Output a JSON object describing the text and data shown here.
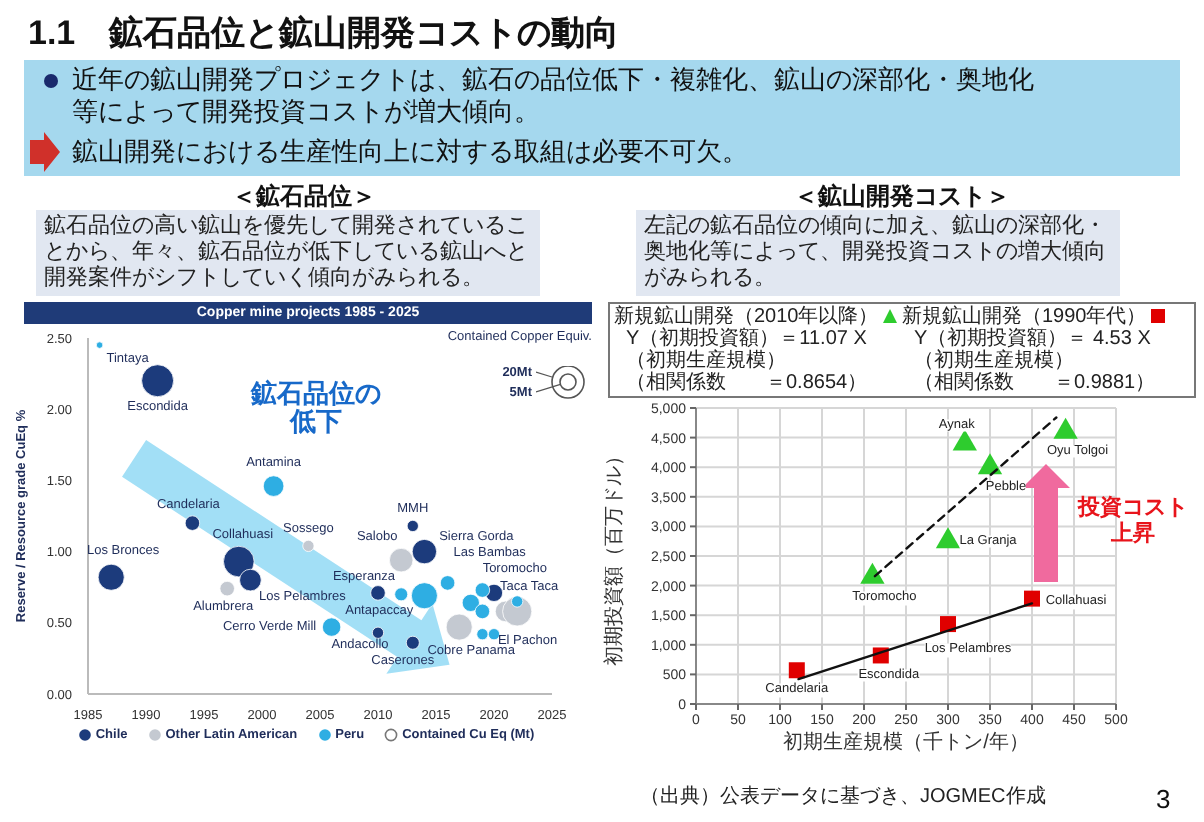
{
  "chart_data": [
    {
      "type": "other",
      "title": "1.1　鉱石品位と鉱山開発コストの動向",
      "annotations": [
        "近年の鉱山開発プロジェクトは、鉱石の品位低下・複雑化、鉱山の深部化・奥地化等によって開発投資コストが増大傾向。",
        "鉱山開発における生産性向上に対する取組は必要不可欠。",
        "3"
      ]
    },
    {
      "type": "bubble",
      "title": "＜鉱石品位＞",
      "subtitle": "鉱石品位の高い鉱山を優先して開発されていることから、年々、鉱石品位が低下している鉱山へと開発案件がシフトしていく傾向がみられる。",
      "ylabel": "Reserve / Resource grade CuEq %",
      "xlim": [
        1985,
        2025
      ],
      "xticks": [
        1985,
        1990,
        1995,
        2000,
        2005,
        2010,
        2015,
        2020,
        2025
      ],
      "ylim": [
        0,
        2.5
      ],
      "yticks": [
        {
          "value": 0,
          "label": "0.00"
        },
        {
          "value": 0.5,
          "label": "0.50"
        },
        {
          "value": 1,
          "label": "1.00"
        },
        {
          "value": 1.5,
          "label": "1.50"
        },
        {
          "value": 2,
          "label": "2.00"
        },
        {
          "value": 2.5,
          "label": "2.50"
        }
      ],
      "legend": "bottom",
      "marker": "circle",
      "size_legend": [
        {
          "value": 20,
          "label": "20Mt"
        },
        {
          "value": 5,
          "label": "5Mt"
        }
      ],
      "series": [
        {
          "name": "Chile",
          "color": "#1c3b7c",
          "x": [
            1987,
            1991,
            1994,
            1998,
            1999,
            2010,
            2010,
            2013,
            2013,
            2014,
            2020
          ],
          "values": [
            0.82,
            2.2,
            1.2,
            0.93,
            0.8,
            0.43,
            0.71,
            1.18,
            0.36,
            1.0,
            0.71
          ],
          "sizes": [
            16,
            24,
            5,
            22,
            11,
            3,
            5,
            3,
            4,
            14,
            7
          ]
        },
        {
          "name": "Other Latin American",
          "color": "#c4c9d1",
          "x": [
            1997,
            2004,
            2012,
            2017,
            2021,
            2022
          ],
          "values": [
            0.74,
            1.04,
            0.94,
            0.47,
            0.58,
            0.58
          ],
          "sizes": [
            5,
            3,
            13,
            16,
            10,
            20
          ]
        },
        {
          "name": "Peru",
          "color": "#2eaee3",
          "x": [
            1986,
            2001,
            2006,
            2012,
            2014,
            2016,
            2018,
            2019,
            2019,
            2019,
            2020,
            2022
          ],
          "values": [
            2.45,
            1.46,
            0.47,
            0.7,
            0.69,
            0.78,
            0.64,
            0.73,
            0.58,
            0.42,
            0.42,
            0.65
          ],
          "sizes": [
            1,
            10,
            8,
            4,
            16,
            5,
            7,
            5,
            5,
            3,
            3,
            3
          ]
        }
      ],
      "annotations": [
        "Copper mine projects 1985 - 2025",
        "鉱石品位の低下",
        "Contained Copper Equiv.",
        "Contained Cu Eq (Mt)",
        {
          "text": "Tintaya",
          "x": 1986,
          "y": 2.45
        },
        {
          "text": "Escondida",
          "x": 1991,
          "y": 2.2
        },
        {
          "text": "Los Bronces",
          "x": 1987,
          "y": 0.82
        },
        {
          "text": "Candelaria",
          "x": 1994,
          "y": 1.2
        },
        {
          "text": "Collahuasi",
          "x": 1998,
          "y": 0.93
        },
        {
          "text": "Alumbrera",
          "x": 1997,
          "y": 0.74
        },
        {
          "text": "Los Pelambres",
          "x": 1999,
          "y": 0.8
        },
        {
          "text": "Antamina",
          "x": 2001,
          "y": 1.46
        },
        {
          "text": "Sossego",
          "x": 2004,
          "y": 1.04
        },
        {
          "text": "Cerro Verde Mill",
          "x": 2006,
          "y": 0.47
        },
        {
          "text": "Esperanza",
          "x": 2010,
          "y": 0.71
        },
        {
          "text": "Andacollo",
          "x": 2010,
          "y": 0.43
        },
        {
          "text": "Antapaccay",
          "x": 2012,
          "y": 0.7
        },
        {
          "text": "Salobo",
          "x": 2012,
          "y": 0.94
        },
        {
          "text": "MMH",
          "x": 2013,
          "y": 1.18
        },
        {
          "text": "Sierra Gorda",
          "x": 2014,
          "y": 1.0
        },
        {
          "text": "Las Bambas",
          "x": 2016,
          "y": 0.78
        },
        {
          "text": "Toromocho",
          "x": 2018,
          "y": 0.64
        },
        {
          "text": "Caserones",
          "x": 2013,
          "y": 0.36
        },
        {
          "text": "Cobre Panama",
          "x": 2017,
          "y": 0.47
        },
        {
          "text": "El Pachon",
          "x": 2021,
          "y": 0.58
        },
        {
          "text": "Taca Taca",
          "x": 2022,
          "y": 0.58
        }
      ]
    },
    {
      "type": "scatter",
      "title": "＜鉱山開発コスト＞",
      "subtitle": "左記の鉱石品位の傾向に加え、鉱山の深部化・奥地化等によって、開発投資コストの増大傾向がみられる。",
      "xlabel": "初期生産規模（千トン/年）",
      "ylabel": "初期投資額（百万ドル）",
      "xlim": [
        0,
        500
      ],
      "xticks": [
        0,
        50,
        100,
        150,
        200,
        250,
        300,
        350,
        400,
        450,
        500
      ],
      "ylim": [
        0,
        5000
      ],
      "yticks": [
        0,
        500,
        {
          "value": 1000,
          "label": "1,000"
        },
        {
          "value": 1500,
          "label": "1,500"
        },
        {
          "value": 2000,
          "label": "2,000"
        },
        {
          "value": 2500,
          "label": "2,500"
        },
        {
          "value": 3000,
          "label": "3,000"
        },
        {
          "value": 3500,
          "label": "3,500"
        },
        {
          "value": 4000,
          "label": "4,000"
        },
        {
          "value": 4500,
          "label": "4,500"
        },
        {
          "value": 5000,
          "label": "5,000"
        }
      ],
      "grid": true,
      "legend": "top",
      "series": [
        {
          "name": "新規鉱山開発（2010年以降）",
          "color": "#2ecc2e",
          "marker": "triangle",
          "x": [
            210,
            300,
            320,
            350,
            440
          ],
          "values": [
            2150,
            2750,
            4400,
            4000,
            4600
          ]
        },
        {
          "name": "新規鉱山開発（1990年代）",
          "color": "#e00000",
          "marker": "square",
          "x": [
            120,
            220,
            300,
            400
          ],
          "values": [
            570,
            820,
            1350,
            1780
          ]
        },
        {
          "type": "line",
          "color": "#111111",
          "marker": "none",
          "line_style": "dashed",
          "x": [
            213,
            429
          ],
          "values": [
            2160,
            4840
          ]
        },
        {
          "type": "line",
          "color": "#111111",
          "marker": "none",
          "line_style": "solid",
          "x": [
            122,
            400
          ],
          "values": [
            420,
            1700
          ]
        }
      ],
      "annotations": [
        "投資コスト上昇",
        "Y（初期投資額）＝11.07 X（初期生産規模）",
        "（相関係数　　＝0.8654）",
        "Y（初期投資額）＝ 4.53 X（初期生産規模）",
        "（相関係数　　＝0.9881）",
        "（出典）公表データに基づき、JOGMEC作成",
        {
          "text": "Aynak",
          "x": 320,
          "y": 4400
        },
        {
          "text": "Oyu Tolgoi",
          "x": 440,
          "y": 4600
        },
        {
          "text": "Pebble",
          "x": 350,
          "y": 4000
        },
        {
          "text": "La Granja",
          "x": 300,
          "y": 2750
        },
        {
          "text": "Toromocho",
          "x": 210,
          "y": 2150
        },
        {
          "text": "Candelaria",
          "x": 120,
          "y": 570
        },
        {
          "text": "Escondida",
          "x": 220,
          "y": 820
        },
        {
          "text": "Los Pelambres",
          "x": 300,
          "y": 1350
        },
        {
          "text": "Collahuasi",
          "x": 400,
          "y": 1780
        }
      ]
    }
  ]
}
